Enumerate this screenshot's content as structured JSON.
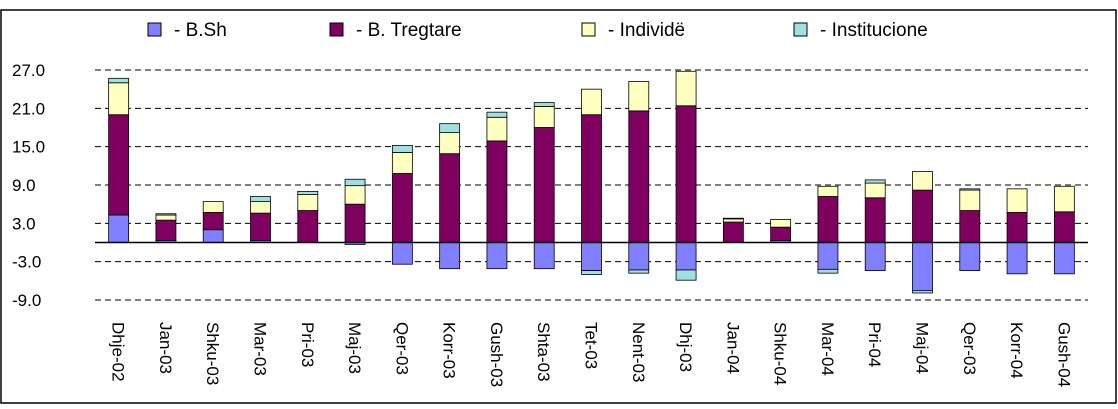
{
  "chart_data": {
    "type": "bar",
    "stacked": true,
    "title": "",
    "xlabel": "",
    "ylabel": "",
    "ylim": [
      -9.0,
      27.0
    ],
    "yticks": [
      "27.0",
      "21.0",
      "15.0",
      "9.0",
      "3.0",
      "-3.0",
      "-9.0"
    ],
    "grid": "dashed horizontal",
    "legend_position": "top",
    "categories": [
      "Dhje-02",
      "Jan-03",
      "Shku-03",
      "Mar-03",
      "Pri-03",
      "Maj-03",
      "Qer-03",
      "Korr-03",
      "Gush-03",
      "Shta-03",
      "Tet-03",
      "Nent-03",
      "Dhj-03",
      "Jan-04",
      "Shku-04",
      "Mar-04",
      "Pri-04",
      "Maj-04",
      "Qer-03",
      "Korr-04",
      "Gush-04"
    ],
    "series": [
      {
        "name": "- B.Sh",
        "color": "#8080ff",
        "values": [
          4.3,
          0.3,
          2.0,
          0.3,
          0,
          -0.3,
          -3.4,
          -4.1,
          -4.1,
          -4.1,
          -4.4,
          -4.3,
          -4.3,
          0,
          0.3,
          -4.2,
          -4.4,
          -7.5,
          -4.4,
          -4.9,
          -4.9
        ]
      },
      {
        "name": "- B. Tregtare",
        "color": "#800060",
        "values": [
          15.7,
          3.2,
          2.7,
          4.3,
          5.0,
          6.0,
          10.8,
          13.9,
          15.9,
          18.0,
          20.0,
          20.6,
          21.4,
          3.2,
          2.1,
          7.2,
          7.0,
          8.2,
          5.0,
          4.7,
          4.8
        ]
      },
      {
        "name": "- Individë",
        "color": "#ffffc0",
        "values": [
          5.0,
          0.8,
          1.7,
          1.8,
          2.5,
          2.9,
          3.3,
          3.3,
          3.7,
          3.3,
          4.0,
          4.6,
          5.4,
          0.5,
          1.2,
          1.6,
          2.3,
          2.9,
          3.2,
          3.7,
          4.0
        ]
      },
      {
        "name": "- Institucione",
        "color": "#a0e0e0",
        "values": [
          0.7,
          0.2,
          0,
          0.8,
          0.5,
          1.0,
          1.1,
          1.4,
          0.8,
          0.6,
          -0.6,
          -0.5,
          -1.6,
          0.1,
          0,
          -0.6,
          0.5,
          -0.4,
          0.2,
          0,
          0
        ]
      }
    ]
  }
}
